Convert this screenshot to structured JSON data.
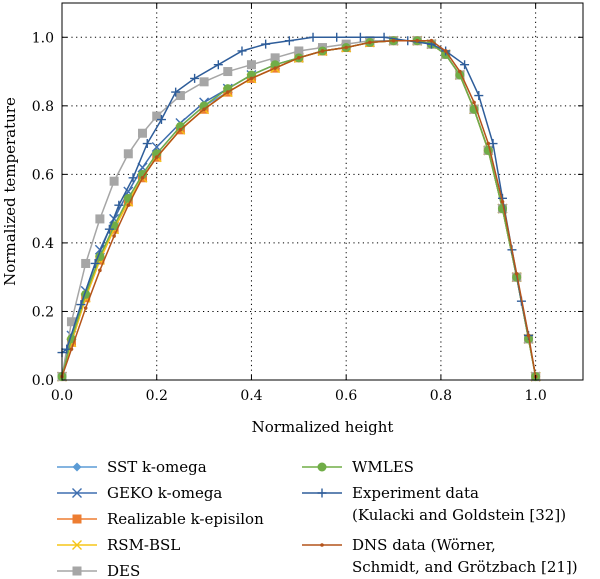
{
  "chart_data": {
    "type": "line",
    "xlabel": "Normalized height",
    "ylabel": "Normalized  temperature",
    "xlim": [
      0,
      1.1
    ],
    "ylim": [
      0,
      1.1
    ],
    "x_ticks": [
      0.0,
      0.2,
      0.4,
      0.6,
      0.8,
      1.0
    ],
    "y_ticks": [
      0.0,
      0.2,
      0.4,
      0.6,
      0.8,
      1.0
    ],
    "x_tick_labels": [
      "0.0",
      "0.2",
      "0.4",
      "0.6",
      "0.8",
      "1.0"
    ],
    "y_tick_labels": [
      "0.0",
      "0.2",
      "0.4",
      "0.6",
      "0.8",
      "1.0"
    ],
    "grid": "dotted",
    "legend_position": "below plot, two columns",
    "series": [
      {
        "name": "SST k-omega",
        "color": "#5b9bd5",
        "marker": "diamond",
        "x": [
          0.0,
          0.02,
          0.05,
          0.08,
          0.11,
          0.14,
          0.17,
          0.2,
          0.25,
          0.3,
          0.35,
          0.4,
          0.45,
          0.5,
          0.55,
          0.6,
          0.65,
          0.7,
          0.75,
          0.78,
          0.81,
          0.84,
          0.87,
          0.9,
          0.93,
          0.96,
          0.985,
          1.0
        ],
        "y": [
          0.01,
          0.12,
          0.25,
          0.36,
          0.45,
          0.53,
          0.6,
          0.66,
          0.74,
          0.8,
          0.84,
          0.88,
          0.91,
          0.94,
          0.96,
          0.97,
          0.985,
          0.99,
          0.99,
          0.98,
          0.95,
          0.89,
          0.79,
          0.67,
          0.5,
          0.3,
          0.12,
          0.01
        ]
      },
      {
        "name": "GEKO k-omega",
        "color": "#3f6fb0",
        "marker": "x",
        "x": [
          0.0,
          0.02,
          0.05,
          0.08,
          0.11,
          0.14,
          0.17,
          0.2,
          0.25,
          0.3,
          0.35,
          0.4,
          0.45,
          0.5,
          0.55,
          0.6,
          0.65,
          0.7,
          0.75,
          0.78,
          0.81,
          0.84,
          0.87,
          0.9,
          0.93,
          0.96,
          0.985,
          1.0
        ],
        "y": [
          0.01,
          0.13,
          0.26,
          0.38,
          0.47,
          0.55,
          0.62,
          0.68,
          0.75,
          0.81,
          0.85,
          0.89,
          0.92,
          0.94,
          0.96,
          0.97,
          0.985,
          0.99,
          0.99,
          0.98,
          0.95,
          0.89,
          0.79,
          0.67,
          0.5,
          0.3,
          0.12,
          0.01
        ]
      },
      {
        "name": "Realizable k-episilon",
        "color": "#ed7d31",
        "marker": "square",
        "x": [
          0.0,
          0.02,
          0.05,
          0.08,
          0.11,
          0.14,
          0.17,
          0.2,
          0.25,
          0.3,
          0.35,
          0.4,
          0.45,
          0.5,
          0.55,
          0.6,
          0.65,
          0.7,
          0.75,
          0.78,
          0.81,
          0.84,
          0.87,
          0.9,
          0.93,
          0.96,
          0.985,
          1.0
        ],
        "y": [
          0.01,
          0.11,
          0.24,
          0.35,
          0.44,
          0.52,
          0.59,
          0.65,
          0.73,
          0.79,
          0.84,
          0.88,
          0.91,
          0.94,
          0.96,
          0.97,
          0.985,
          0.99,
          0.99,
          0.98,
          0.95,
          0.89,
          0.79,
          0.67,
          0.5,
          0.3,
          0.12,
          0.01
        ]
      },
      {
        "name": "RSM-BSL",
        "color": "#f5c518",
        "marker": "x",
        "x": [
          0.0,
          0.02,
          0.05,
          0.08,
          0.11,
          0.14,
          0.17,
          0.2,
          0.25,
          0.3,
          0.35,
          0.4,
          0.45,
          0.5,
          0.55,
          0.6,
          0.65,
          0.7,
          0.75,
          0.78,
          0.81,
          0.84,
          0.87,
          0.9,
          0.93,
          0.96,
          0.985,
          1.0
        ],
        "y": [
          0.01,
          0.11,
          0.24,
          0.35,
          0.44,
          0.52,
          0.59,
          0.65,
          0.73,
          0.79,
          0.84,
          0.88,
          0.91,
          0.94,
          0.96,
          0.97,
          0.985,
          0.99,
          0.99,
          0.98,
          0.95,
          0.89,
          0.79,
          0.67,
          0.5,
          0.3,
          0.12,
          0.01
        ]
      },
      {
        "name": "DES",
        "color": "#a6a6a6",
        "marker": "square",
        "x": [
          0.0,
          0.02,
          0.05,
          0.08,
          0.11,
          0.14,
          0.17,
          0.2,
          0.25,
          0.3,
          0.35,
          0.4,
          0.45,
          0.5,
          0.55,
          0.6,
          0.65,
          0.7,
          0.75,
          0.78,
          0.81,
          0.84,
          0.87,
          0.9,
          0.93,
          0.96,
          0.985,
          1.0
        ],
        "y": [
          0.01,
          0.17,
          0.34,
          0.47,
          0.58,
          0.66,
          0.72,
          0.77,
          0.83,
          0.87,
          0.9,
          0.92,
          0.94,
          0.96,
          0.97,
          0.98,
          0.99,
          0.99,
          0.99,
          0.98,
          0.95,
          0.89,
          0.79,
          0.67,
          0.5,
          0.3,
          0.12,
          0.01
        ]
      },
      {
        "name": "WMLES",
        "color": "#70ad47",
        "marker": "circle",
        "x": [
          0.0,
          0.02,
          0.05,
          0.08,
          0.11,
          0.14,
          0.17,
          0.2,
          0.25,
          0.3,
          0.35,
          0.4,
          0.45,
          0.5,
          0.55,
          0.6,
          0.65,
          0.7,
          0.75,
          0.78,
          0.81,
          0.84,
          0.87,
          0.9,
          0.93,
          0.96,
          0.985,
          1.0
        ],
        "y": [
          0.01,
          0.12,
          0.25,
          0.36,
          0.45,
          0.53,
          0.6,
          0.66,
          0.74,
          0.8,
          0.85,
          0.89,
          0.92,
          0.94,
          0.96,
          0.97,
          0.985,
          0.99,
          0.99,
          0.98,
          0.95,
          0.89,
          0.79,
          0.67,
          0.5,
          0.3,
          0.12,
          0.01
        ]
      },
      {
        "name": "Experiment data (Kulacki and Goldstein [32])",
        "color": "#2e5d9a",
        "marker": "plus",
        "x": [
          0.0,
          0.01,
          0.04,
          0.07,
          0.1,
          0.12,
          0.15,
          0.18,
          0.21,
          0.24,
          0.28,
          0.33,
          0.38,
          0.43,
          0.48,
          0.53,
          0.58,
          0.63,
          0.68,
          0.73,
          0.78,
          0.81,
          0.85,
          0.88,
          0.91,
          0.93,
          0.95,
          0.97,
          0.985
        ],
        "y": [
          0.08,
          0.09,
          0.22,
          0.34,
          0.44,
          0.51,
          0.59,
          0.69,
          0.76,
          0.84,
          0.88,
          0.92,
          0.96,
          0.98,
          0.99,
          1.0,
          1.0,
          1.0,
          1.0,
          0.99,
          0.98,
          0.96,
          0.92,
          0.83,
          0.69,
          0.53,
          0.38,
          0.23,
          0.13
        ]
      },
      {
        "name": "DNS data (Wörner, Schmidt, and Grötzbach [21])",
        "color": "#b4531a",
        "marker": "dot",
        "x": [
          0.0,
          0.02,
          0.05,
          0.08,
          0.11,
          0.14,
          0.17,
          0.2,
          0.25,
          0.3,
          0.35,
          0.4,
          0.45,
          0.5,
          0.55,
          0.6,
          0.65,
          0.7,
          0.75,
          0.78,
          0.81,
          0.84,
          0.87,
          0.9,
          0.93,
          0.96,
          0.985,
          1.0
        ],
        "y": [
          0.01,
          0.09,
          0.21,
          0.32,
          0.42,
          0.51,
          0.59,
          0.65,
          0.73,
          0.79,
          0.84,
          0.88,
          0.91,
          0.94,
          0.96,
          0.97,
          0.985,
          0.99,
          0.99,
          0.99,
          0.96,
          0.9,
          0.81,
          0.69,
          0.52,
          0.31,
          0.13,
          0.01
        ]
      }
    ]
  },
  "legend": {
    "left_column": [
      {
        "label": "SST k-omega",
        "color": "#5b9bd5",
        "marker": "diamond",
        "lines": [
          "SST k-omega"
        ]
      },
      {
        "label": "GEKO k-omega",
        "color": "#3f6fb0",
        "marker": "x",
        "lines": [
          "GEKO k-omega"
        ]
      },
      {
        "label": "Realizable k-episilon",
        "color": "#ed7d31",
        "marker": "square",
        "lines": [
          "Realizable k-episilon"
        ]
      },
      {
        "label": "RSM-BSL",
        "color": "#f5c518",
        "marker": "x",
        "lines": [
          "RSM-BSL"
        ]
      },
      {
        "label": "DES",
        "color": "#a6a6a6",
        "marker": "square",
        "lines": [
          "DES"
        ]
      }
    ],
    "right_column": [
      {
        "label": "WMLES",
        "color": "#70ad47",
        "marker": "circle",
        "lines": [
          "WMLES"
        ]
      },
      {
        "label": "Experiment data (Kulacki and Goldstein [32])",
        "color": "#2e5d9a",
        "marker": "plus",
        "lines": [
          "Experiment data",
          "(Kulacki and Goldstein [32])"
        ]
      },
      {
        "label": "DNS data (Wörner, Schmidt, and Grötzbach [21])",
        "color": "#b4531a",
        "marker": "dot",
        "lines": [
          "DNS data (Wörner,",
          "Schmidt, and Grötzbach [21])"
        ]
      }
    ]
  }
}
